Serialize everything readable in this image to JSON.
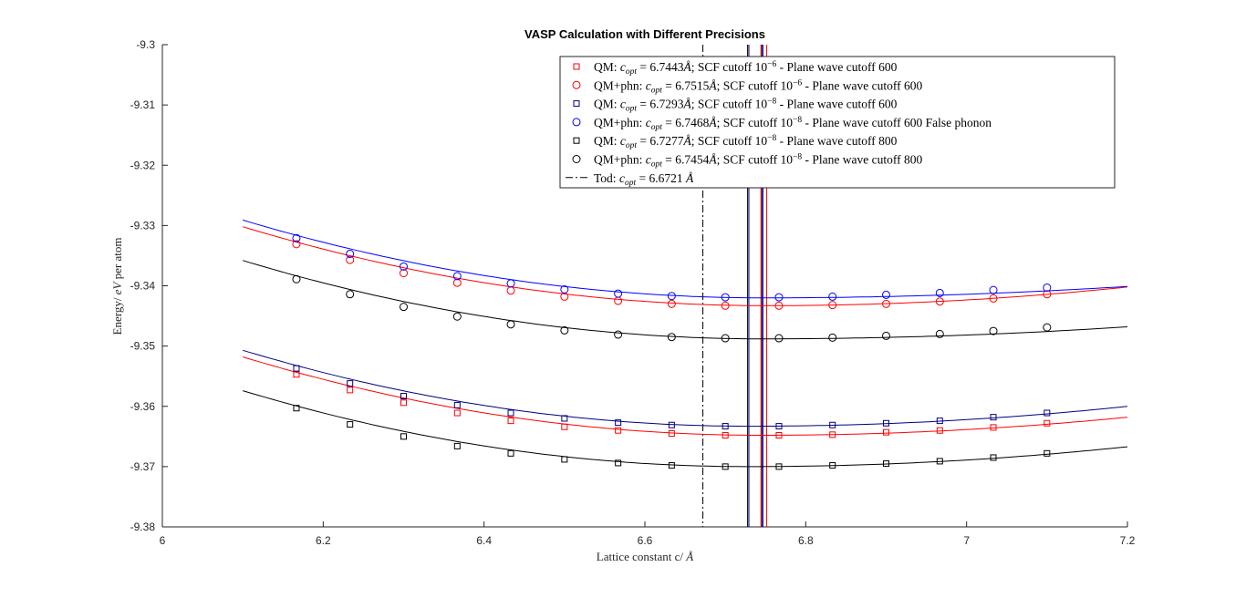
{
  "chart_data": {
    "type": "line",
    "title": "VASP Calculation with Different Precisions",
    "xlabel": "Lattice constant c/ Å",
    "ylabel": "Energy/ eV per atom",
    "xlim": [
      6,
      7.2
    ],
    "ylim": [
      -9.38,
      -9.3
    ],
    "xticks": [
      6,
      6.2,
      6.4,
      6.6,
      6.8,
      7,
      7.2
    ],
    "xtick_labels": [
      "6",
      "6.2",
      "6.4",
      "6.6",
      "6.8",
      "7",
      "7.2"
    ],
    "yticks": [
      -9.3,
      -9.31,
      -9.32,
      -9.33,
      -9.34,
      -9.35,
      -9.36,
      -9.37,
      -9.38
    ],
    "ytick_labels": [
      "-9.3",
      "-9.31",
      "-9.32",
      "-9.33",
      "-9.34",
      "-9.35",
      "-9.36",
      "-9.37",
      "-9.38"
    ],
    "grid": false,
    "legend_position": "top-right",
    "series": [
      {
        "name": "QM: c_opt = 6.7443Å; SCF cutoff 10^-6 - Plane wave cutoff 600",
        "color": "#ff0000",
        "marker": "square",
        "x": [
          6.1667,
          6.2333,
          6.3,
          6.3667,
          6.4333,
          6.5,
          6.5667,
          6.6333,
          6.7,
          6.7667,
          6.8333,
          6.9,
          6.9667,
          7.0333,
          7.1
        ],
        "y": [
          -9.3547,
          -9.3573,
          -9.3594,
          -9.3611,
          -9.3624,
          -9.3634,
          -9.364,
          -9.3645,
          -9.3648,
          -9.3648,
          -9.3647,
          -9.3643,
          -9.364,
          -9.3635,
          -9.3628
        ],
        "fit": {
          "c_opt": 6.7443,
          "e_min": -9.3648,
          "x_start": 6.1,
          "x_end": 7.2,
          "e_start": -9.3518,
          "e_end": -9.3618
        }
      },
      {
        "name": "QM+phn: c_opt = 6.7515Å; SCF cutoff 10^-6 - Plane wave cutoff 600",
        "color": "#ff0000",
        "marker": "circle",
        "x": [
          6.1667,
          6.2333,
          6.3,
          6.3667,
          6.4333,
          6.5,
          6.5667,
          6.6333,
          6.7,
          6.7667,
          6.8333,
          6.9,
          6.9667,
          7.0333,
          7.1
        ],
        "y": [
          -9.3331,
          -9.3357,
          -9.3379,
          -9.3395,
          -9.3408,
          -9.3418,
          -9.3425,
          -9.343,
          -9.3433,
          -9.3433,
          -9.3432,
          -9.343,
          -9.3426,
          -9.3421,
          -9.3414
        ],
        "fit": {
          "c_opt": 6.7515,
          "e_min": -9.3433,
          "x_start": 6.1,
          "x_end": 7.2,
          "e_start": -9.3302,
          "e_end": -9.3402
        }
      },
      {
        "name": "QM: c_opt = 6.7293Å; SCF cutoff 10^-8 - Plane wave cutoff 600",
        "color": "#00007f",
        "marker": "square",
        "x": [
          6.1667,
          6.2333,
          6.3,
          6.3667,
          6.4333,
          6.5,
          6.5667,
          6.6333,
          6.7,
          6.7667,
          6.8333,
          6.9,
          6.9667,
          7.0333,
          7.1
        ],
        "y": [
          -9.3537,
          -9.3562,
          -9.3583,
          -9.3598,
          -9.3611,
          -9.362,
          -9.3627,
          -9.3631,
          -9.3633,
          -9.3633,
          -9.3631,
          -9.3628,
          -9.3624,
          -9.3618,
          -9.3611
        ],
        "fit": {
          "c_opt": 6.7293,
          "e_min": -9.3633,
          "x_start": 6.1,
          "x_end": 7.2,
          "e_start": -9.3507,
          "e_end": -9.36
        }
      },
      {
        "name": "QM+phn: c_opt = 6.7468Å; SCF cutoff 10^-8 - Plane wave cutoff 600 False phonon",
        "color": "#0000ff",
        "marker": "circle",
        "x": [
          6.1667,
          6.2333,
          6.3,
          6.3667,
          6.4333,
          6.5,
          6.5667,
          6.6333,
          6.7,
          6.7667,
          6.8333,
          6.9,
          6.9667,
          7.0333,
          7.1
        ],
        "y": [
          -9.3321,
          -9.3347,
          -9.3368,
          -9.3384,
          -9.3396,
          -9.3406,
          -9.3413,
          -9.3417,
          -9.3419,
          -9.3419,
          -9.3418,
          -9.3415,
          -9.3412,
          -9.3407,
          -9.3403
        ],
        "fit": {
          "c_opt": 6.7468,
          "e_min": -9.342,
          "x_start": 6.1,
          "x_end": 7.2,
          "e_start": -9.3291,
          "e_end": -9.3401
        }
      },
      {
        "name": "QM: c_opt = 6.7277Å; SCF cutoff 10^-8 - Plane wave cutoff 800",
        "color": "#000000",
        "marker": "square",
        "x": [
          6.1667,
          6.2333,
          6.3,
          6.3667,
          6.4333,
          6.5,
          6.5667,
          6.6333,
          6.7,
          6.7667,
          6.8333,
          6.9,
          6.9667,
          7.0333,
          7.1
        ],
        "y": [
          -9.3603,
          -9.363,
          -9.365,
          -9.3666,
          -9.3678,
          -9.3688,
          -9.3694,
          -9.3698,
          -9.37,
          -9.37,
          -9.3698,
          -9.3695,
          -9.3691,
          -9.3685,
          -9.3678
        ],
        "fit": {
          "c_opt": 6.7277,
          "e_min": -9.37,
          "x_start": 6.1,
          "x_end": 7.2,
          "e_start": -9.3574,
          "e_end": -9.3667
        }
      },
      {
        "name": "QM+phn: c_opt = 6.7454Å; SCF cutoff 10^-8 - Plane wave cutoff 800",
        "color": "#000000",
        "marker": "circle",
        "x": [
          6.1667,
          6.2333,
          6.3,
          6.3667,
          6.4333,
          6.5,
          6.5667,
          6.6333,
          6.7,
          6.7667,
          6.8333,
          6.9,
          6.9667,
          7.0333,
          7.1
        ],
        "y": [
          -9.3389,
          -9.3414,
          -9.3435,
          -9.3451,
          -9.3464,
          -9.3474,
          -9.3481,
          -9.3485,
          -9.3487,
          -9.3487,
          -9.3486,
          -9.3483,
          -9.348,
          -9.3475,
          -9.3469
        ],
        "fit": {
          "c_opt": 6.7454,
          "e_min": -9.3488,
          "x_start": 6.1,
          "x_end": 7.2,
          "e_start": -9.3358,
          "e_end": -9.3468
        }
      },
      {
        "name": "Tod: c_opt = 6.6721 Å",
        "color": "#000000",
        "marker": "dashdot-line",
        "x_value": 6.6721
      }
    ],
    "vertical_lines": [
      {
        "x": 6.6721,
        "color": "#000000",
        "style": "dashdot"
      },
      {
        "x": 6.7443,
        "color": "#ff0000",
        "style": "solid"
      },
      {
        "x": 6.7515,
        "color": "#ff0000",
        "style": "solid"
      },
      {
        "x": 6.7293,
        "color": "#00007f",
        "style": "solid"
      },
      {
        "x": 6.7468,
        "color": "#0000ff",
        "style": "solid"
      },
      {
        "x": 6.7277,
        "color": "#000000",
        "style": "solid"
      },
      {
        "x": 6.7454,
        "color": "#000000",
        "style": "solid"
      }
    ]
  },
  "legend": {
    "entries": [
      {
        "marker": "square",
        "color": "#ff0000",
        "prefix": "QM: ",
        "c_sym": "c",
        "c_sub": "opt",
        "eq": " = 6.7443",
        "unit": "Å",
        "mid": "; SCF cutoff 10",
        "exp": "−6",
        "tail": " - Plane wave cutoff 600"
      },
      {
        "marker": "circle",
        "color": "#ff0000",
        "prefix": "QM+phn: ",
        "c_sym": "c",
        "c_sub": "opt",
        "eq": " = 6.7515",
        "unit": "Å",
        "mid": "; SCF cutoff 10",
        "exp": "−6",
        "tail": " - Plane wave cutoff 600"
      },
      {
        "marker": "square",
        "color": "#00007f",
        "prefix": "QM: ",
        "c_sym": "c",
        "c_sub": "opt",
        "eq": " = 6.7293",
        "unit": "Å",
        "mid": "; SCF cutoff 10",
        "exp": "−8",
        "tail": " - Plane wave cutoff 600"
      },
      {
        "marker": "circle",
        "color": "#0000ff",
        "prefix": "QM+phn: ",
        "c_sym": "c",
        "c_sub": "opt",
        "eq": " = 6.7468",
        "unit": "Å",
        "mid": "; SCF cutoff 10",
        "exp": "−8",
        "tail": " - Plane wave cutoff 600 False phonon"
      },
      {
        "marker": "square",
        "color": "#000000",
        "prefix": "QM: ",
        "c_sym": "c",
        "c_sub": "opt",
        "eq": " = 6.7277",
        "unit": "Å",
        "mid": "; SCF cutoff 10",
        "exp": "−8",
        "tail": " - Plane wave cutoff 800"
      },
      {
        "marker": "circle",
        "color": "#000000",
        "prefix": "QM+phn: ",
        "c_sym": "c",
        "c_sub": "opt",
        "eq": " = 6.7454",
        "unit": "Å",
        "mid": "; SCF cutoff 10",
        "exp": "−8",
        "tail": " - Plane wave cutoff 800"
      },
      {
        "marker": "dashdot",
        "color": "#000000",
        "prefix": "Tod: ",
        "c_sym": "c",
        "c_sub": "opt",
        "eq": " = 6.6721 ",
        "unit": "Å",
        "mid": "",
        "exp": "",
        "tail": ""
      }
    ]
  },
  "axis_text": {
    "title": "VASP Calculation with Different Precisions",
    "xlabel_text": "Lattice constant c/ ",
    "xlabel_unit": "Å",
    "ylabel_pre": "Energy/ ",
    "ylabel_unit": "eV",
    "ylabel_post": " per atom"
  }
}
